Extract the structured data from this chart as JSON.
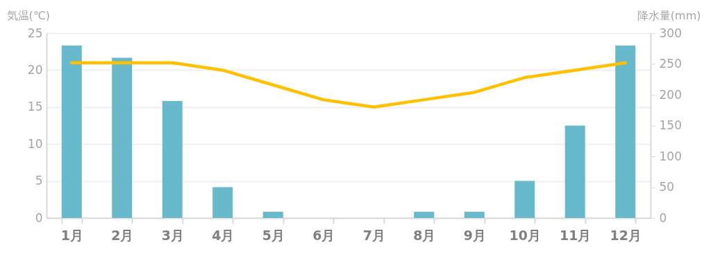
{
  "chart_data": {
    "type": "bar",
    "categories": [
      "1月",
      "2月",
      "3月",
      "4月",
      "5月",
      "6月",
      "7月",
      "8月",
      "9月",
      "10月",
      "11月",
      "12月"
    ],
    "ylabel": "気温(℃)",
    "y2label": "降水量(mm)",
    "ylim": [
      0,
      25
    ],
    "yticks": [
      0,
      5,
      10,
      15,
      20,
      25
    ],
    "y2lim": [
      0,
      300
    ],
    "y2ticks": [
      0,
      50,
      100,
      150,
      200,
      250,
      300
    ],
    "grid": "y",
    "series": [
      {
        "axis": "y2",
        "color": "#67b9cb",
        "values": [
          280,
          260,
          190,
          50,
          10,
          0,
          0,
          10,
          10,
          60,
          150,
          280
        ]
      },
      {
        "type": "line",
        "axis": "y",
        "color": "#ffc000",
        "values": [
          21,
          21,
          21,
          20,
          18,
          16,
          15,
          16,
          17,
          19,
          20,
          21
        ]
      }
    ]
  }
}
